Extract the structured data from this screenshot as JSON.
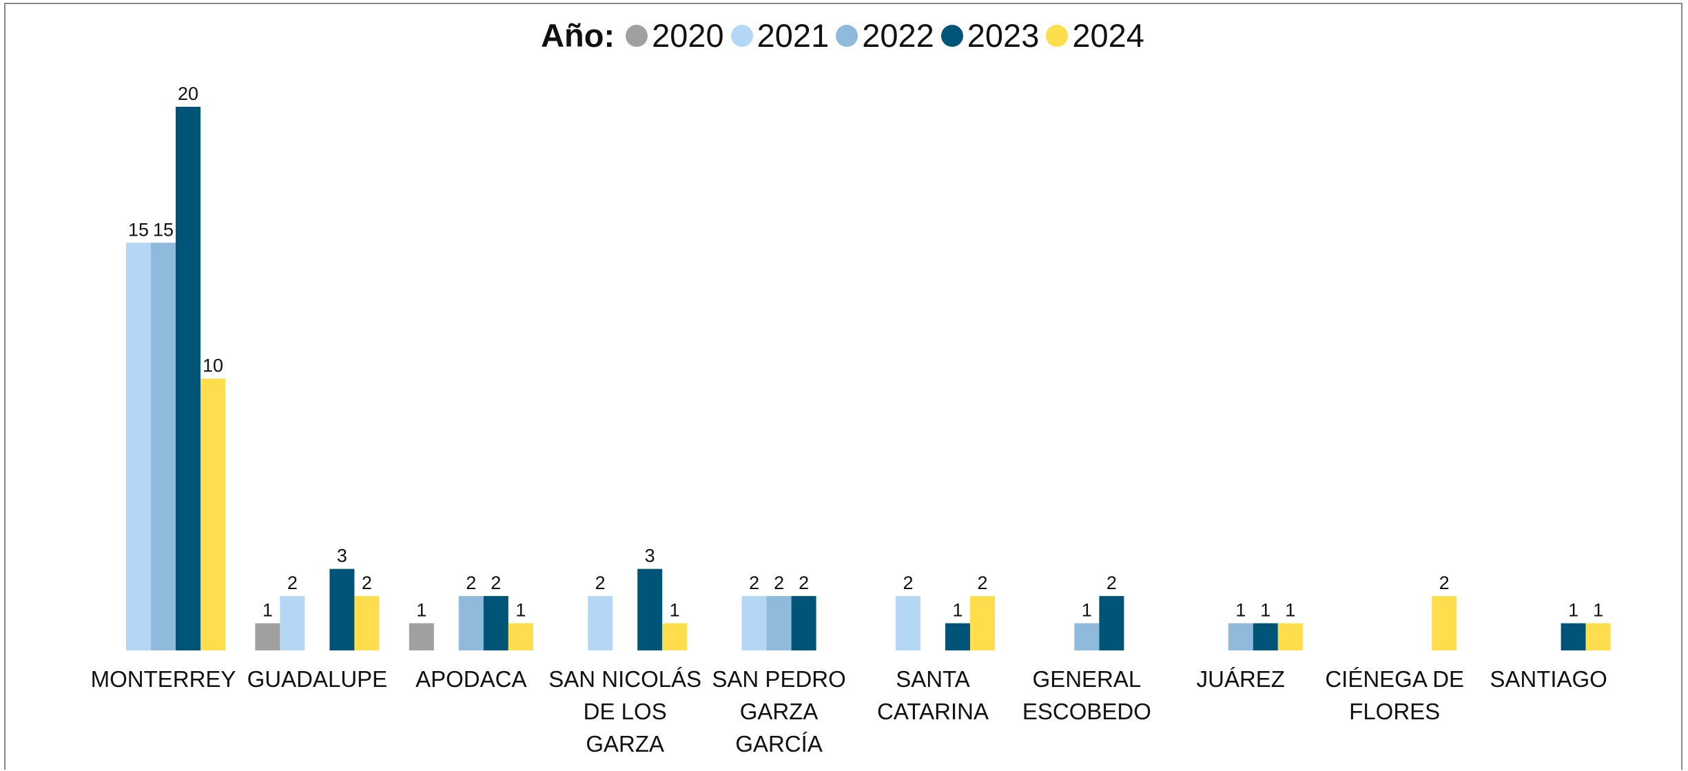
{
  "chart_data": {
    "type": "bar",
    "legend_title": "Año:",
    "categories": [
      "MONTERREY",
      "GUADALUPE",
      "APODACA",
      "SAN NICOLÁS DE LOS GARZA",
      "SAN PEDRO GARZA GARCÍA",
      "SANTA CATARINA",
      "GENERAL ESCOBEDO",
      "JUÁREZ",
      "CIÉNEGA DE FLORES",
      "SANTIAGO"
    ],
    "series": [
      {
        "name": "2020",
        "color": "#a0a0a0",
        "values": [
          null,
          1,
          1,
          null,
          null,
          null,
          null,
          null,
          null,
          null
        ]
      },
      {
        "name": "2021",
        "color": "#b4d7f5",
        "values": [
          15,
          2,
          null,
          2,
          2,
          2,
          null,
          null,
          null,
          null
        ]
      },
      {
        "name": "2022",
        "color": "#8fbadb",
        "values": [
          15,
          null,
          2,
          null,
          2,
          null,
          1,
          1,
          null,
          null
        ]
      },
      {
        "name": "2023",
        "color": "#005478",
        "values": [
          20,
          3,
          2,
          3,
          2,
          1,
          2,
          1,
          null,
          1
        ]
      },
      {
        "name": "2024",
        "color": "#ffde4d",
        "values": [
          10,
          2,
          1,
          1,
          null,
          2,
          null,
          1,
          2,
          1
        ]
      }
    ],
    "legend_position": "top"
  }
}
